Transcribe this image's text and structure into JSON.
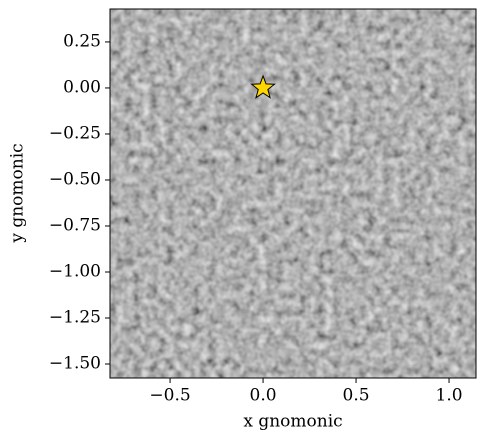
{
  "chart_data": {
    "type": "scatter",
    "marker": "star",
    "color": "#ffd700",
    "edgecolor": "#000000",
    "x": [
      0
    ],
    "values": [
      0
    ],
    "xlabel": "x gnomonic",
    "ylabel": "y gnomonic",
    "xlim": [
      -0.823,
      1.145
    ],
    "ylim": [
      -1.576,
      0.429
    ],
    "xticks": [
      {
        "value": -0.5,
        "label": "−0.5"
      },
      {
        "value": 0,
        "label": "0.0"
      },
      0.5,
      {
        "value": 1,
        "label": "1.0"
      }
    ],
    "yticks": [
      0.25,
      {
        "value": 0,
        "label": "0.00"
      },
      {
        "value": -0.25,
        "label": "−0.25"
      },
      {
        "value": -0.5,
        "label": "−0.50"
      },
      {
        "value": -0.75,
        "label": "−0.75"
      },
      {
        "value": -1,
        "label": "−1.00"
      },
      {
        "value": -1.25,
        "label": "−1.25"
      },
      {
        "value": -1.5,
        "label": "−1.50"
      }
    ]
  }
}
